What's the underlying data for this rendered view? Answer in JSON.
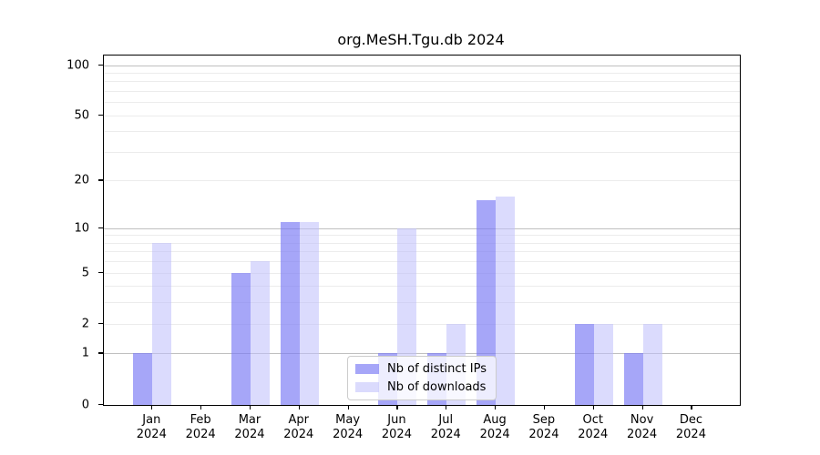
{
  "title": "org.MeSH.Tgu.db 2024",
  "legend": {
    "position": "lower center",
    "items": [
      {
        "label": "Nb of distinct IPs",
        "color": "rgba(120,120,244,0.66)"
      },
      {
        "label": "Nb of downloads",
        "color": "rgba(190,190,252,0.55)"
      }
    ]
  },
  "chart_data": {
    "type": "bar",
    "title": "org.MeSH.Tgu.db 2024",
    "categories": [
      {
        "month": "Jan",
        "year": "2024"
      },
      {
        "month": "Feb",
        "year": "2024"
      },
      {
        "month": "Mar",
        "year": "2024"
      },
      {
        "month": "Apr",
        "year": "2024"
      },
      {
        "month": "May",
        "year": "2024"
      },
      {
        "month": "Jun",
        "year": "2024"
      },
      {
        "month": "Jul",
        "year": "2024"
      },
      {
        "month": "Aug",
        "year": "2024"
      },
      {
        "month": "Sep",
        "year": "2024"
      },
      {
        "month": "Oct",
        "year": "2024"
      },
      {
        "month": "Nov",
        "year": "2024"
      },
      {
        "month": "Dec",
        "year": "2024"
      }
    ],
    "series": [
      {
        "name": "Nb of distinct IPs",
        "color": "rgba(120,120,244,0.66)",
        "values": [
          1,
          0,
          5,
          11,
          0,
          1,
          1,
          15,
          0,
          2,
          1,
          0
        ]
      },
      {
        "name": "Nb of downloads",
        "color": "rgba(190,190,252,0.55)",
        "values": [
          8,
          0,
          6,
          11,
          0,
          10,
          2,
          16,
          0,
          2,
          2,
          0
        ]
      }
    ],
    "y_axis": {
      "scale": "log10(1+x)",
      "ticks": [
        0,
        1,
        2,
        5,
        10,
        20,
        50,
        100
      ],
      "ylim": [
        0,
        113
      ]
    },
    "grid": {
      "orientation": "horizontal",
      "major_lines": [
        1,
        10,
        100
      ],
      "minor_lines": [
        2,
        3,
        4,
        5,
        6,
        7,
        8,
        9,
        20,
        30,
        40,
        50,
        60,
        70,
        80,
        90
      ]
    },
    "legend_position": "lower center"
  }
}
